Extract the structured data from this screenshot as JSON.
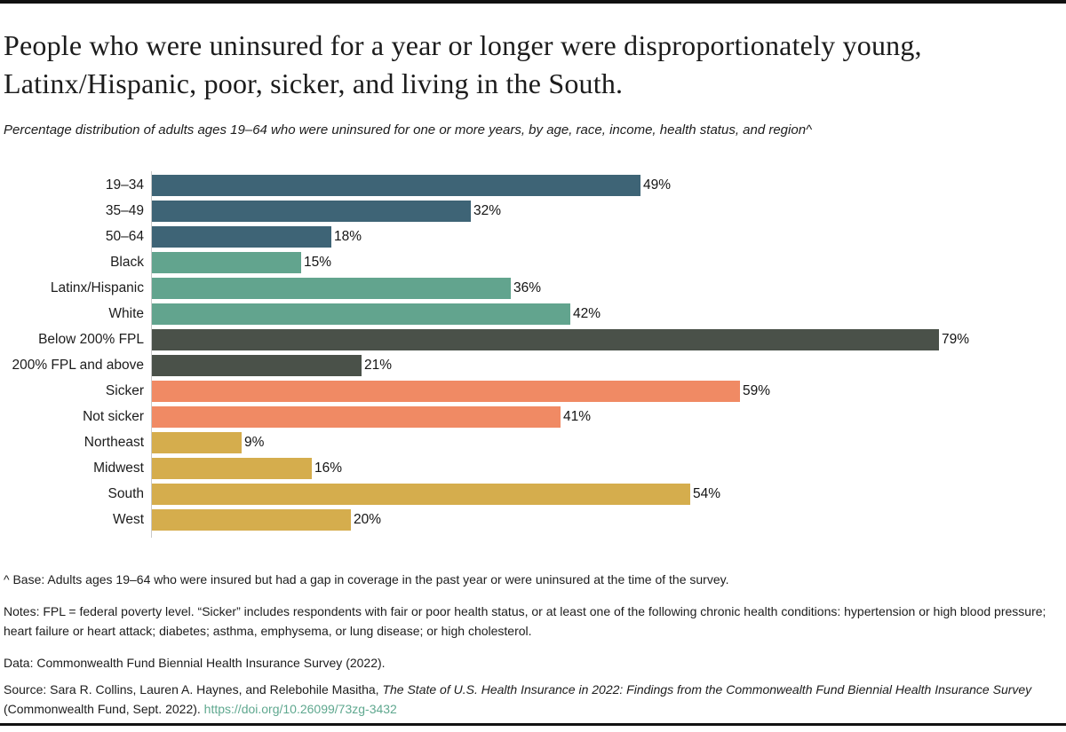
{
  "header": {
    "title": "People who were uninsured for a year or longer were disproportionately young, Latinx/Hispanic, poor, sicker, and living in the South.",
    "subtitle": "Percentage distribution of adults ages 19–64 who were uninsured for one or more years, by age, race, income, health status, and region^"
  },
  "chart_data": {
    "type": "bar",
    "orientation": "horizontal",
    "categories": [
      "19–34",
      "35–49",
      "50–64",
      "Black",
      "Latinx/Hispanic",
      "White",
      "Below 200% FPL",
      "200% FPL and above",
      "Sicker",
      "Not sicker",
      "Northeast",
      "Midwest",
      "South",
      "West"
    ],
    "values": [
      49,
      32,
      18,
      15,
      36,
      42,
      79,
      21,
      59,
      41,
      9,
      16,
      54,
      20
    ],
    "value_suffix": "%",
    "group_of_category": [
      "age",
      "age",
      "age",
      "race",
      "race",
      "race",
      "income",
      "income",
      "health",
      "health",
      "region",
      "region",
      "region",
      "region"
    ],
    "group_colors": {
      "age": "#3E6476",
      "race": "#62A48E",
      "income": "#4A5149",
      "health": "#F08A64",
      "region": "#D5AD4D"
    },
    "xlim": [
      0,
      100
    ],
    "grid": false,
    "legend": false,
    "value_labels": "outside-end",
    "axis_line_color": "#C9C9C9"
  },
  "footnotes": {
    "base": "^ Base: Adults ages 19–64 who were insured but had a gap in coverage in the past year or were uninsured at the time of the survey.",
    "notes": "Notes: FPL = federal poverty level. “Sicker” includes respondents with fair or poor health status, or at least one of the following chronic health conditions: hypertension or high blood pressure; heart failure or heart attack; diabetes; asthma, emphysema, or lung disease; or high cholesterol.",
    "data": "Data: Commonwealth Fund Biennial Health Insurance Survey (2022).",
    "source_prefix": "Source: Sara R. Collins, Lauren A. Haynes, and Relebohile Masitha, ",
    "source_italic": "The State of U.S. Health Insurance in 2022: Findings from the Commonwealth Fund Biennial Health Insurance Survey",
    "source_suffix": " (Commonwealth Fund, Sept. 2022). ",
    "source_link": "https://doi.org/10.26099/73zg-3432"
  }
}
